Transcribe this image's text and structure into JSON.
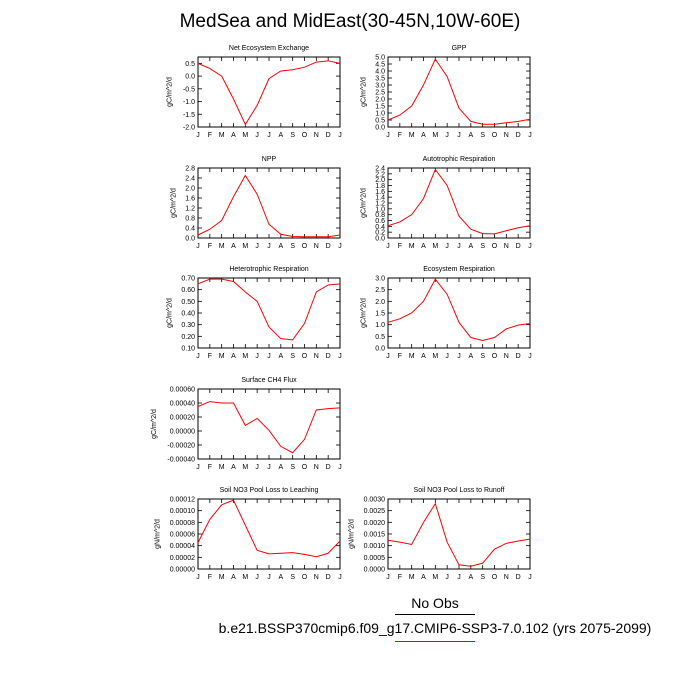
{
  "title": "MedSea and MidEast(30-45N,10W-60E)",
  "legend": {
    "label": "No Obs",
    "case": "b.e21.BSSP370cmip6.f09_g17.CMIP6-SSP3-7.0.102 (yrs 2075-2099)",
    "line_color": "#ff0000"
  },
  "colors": {
    "series": "#ff0000",
    "axis": "#000000"
  },
  "chart_data": [
    {
      "id": "nee",
      "type": "line",
      "title": "Net Ecosystem Exchange",
      "ylabel": "gC/m^2/d",
      "x": [
        "J",
        "F",
        "M",
        "A",
        "M",
        "J",
        "J",
        "A",
        "S",
        "O",
        "N",
        "D",
        "J"
      ],
      "ylim": [
        -2.0,
        0.75
      ],
      "yticks": [
        0.5,
        0.0,
        -0.5,
        -1.0,
        -1.5,
        -2.0
      ],
      "ytick_labels": [
        "0.5",
        "0.0",
        "-0.5",
        "-1.0",
        "-1.5",
        "-2.0"
      ],
      "values": [
        0.5,
        0.3,
        0.0,
        -0.9,
        -1.9,
        -1.15,
        -0.1,
        0.2,
        0.25,
        0.35,
        0.55,
        0.6,
        0.5
      ]
    },
    {
      "id": "gpp",
      "type": "line",
      "title": "GPP",
      "ylabel": "gC/m^2/d",
      "x": [
        "J",
        "F",
        "M",
        "A",
        "M",
        "J",
        "J",
        "A",
        "S",
        "O",
        "N",
        "D",
        "J"
      ],
      "ylim": [
        0,
        5.0
      ],
      "yticks": [
        0,
        0.5,
        1.0,
        1.5,
        2.0,
        2.5,
        3.0,
        3.5,
        4.0,
        4.5,
        5.0
      ],
      "ytick_labels": [
        "0.0",
        "0.5",
        "1.0",
        "1.5",
        "2.0",
        "2.5",
        "3.0",
        "3.5",
        "4.0",
        "4.5",
        "5.0"
      ],
      "values": [
        0.5,
        0.85,
        1.5,
        3.0,
        4.85,
        3.6,
        1.35,
        0.4,
        0.2,
        0.2,
        0.3,
        0.4,
        0.55
      ]
    },
    {
      "id": "npp",
      "type": "line",
      "title": "NPP",
      "ylabel": "gC/m^2/d",
      "x": [
        "J",
        "F",
        "M",
        "A",
        "M",
        "J",
        "J",
        "A",
        "S",
        "O",
        "N",
        "D",
        "J"
      ],
      "ylim": [
        0,
        2.8
      ],
      "yticks": [
        0,
        0.4,
        0.8,
        1.2,
        1.6,
        2.0,
        2.4,
        2.8
      ],
      "ytick_labels": [
        "0.0",
        "0.4",
        "0.8",
        "1.2",
        "1.6",
        "2.0",
        "2.4",
        "2.8"
      ],
      "values": [
        0.12,
        0.35,
        0.7,
        1.65,
        2.5,
        1.75,
        0.55,
        0.15,
        0.06,
        0.05,
        0.05,
        0.05,
        0.12
      ]
    },
    {
      "id": "ar",
      "type": "line",
      "title": "Autotrophic Respiration",
      "ylabel": "gC/m^2/d",
      "x": [
        "J",
        "F",
        "M",
        "A",
        "M",
        "J",
        "J",
        "A",
        "S",
        "O",
        "N",
        "D",
        "J"
      ],
      "ylim": [
        0,
        2.4
      ],
      "yticks": [
        0,
        0.2,
        0.4,
        0.6,
        0.8,
        1.0,
        1.2,
        1.4,
        1.6,
        1.8,
        2.0,
        2.2,
        2.4
      ],
      "ytick_labels": [
        "0.0",
        "0.2",
        "0.4",
        "0.6",
        "0.8",
        "1.0",
        "1.2",
        "1.4",
        "1.6",
        "1.8",
        "2.0",
        "2.2",
        "2.4"
      ],
      "values": [
        0.42,
        0.55,
        0.8,
        1.35,
        2.35,
        1.8,
        0.75,
        0.3,
        0.15,
        0.14,
        0.25,
        0.35,
        0.42
      ]
    },
    {
      "id": "hr",
      "type": "line",
      "title": "Heterotrophic Respiration",
      "ylabel": "gC/m^2/d",
      "x": [
        "J",
        "F",
        "M",
        "A",
        "M",
        "J",
        "J",
        "A",
        "S",
        "O",
        "N",
        "D",
        "J"
      ],
      "ylim": [
        0.1,
        0.7
      ],
      "yticks": [
        0.1,
        0.2,
        0.3,
        0.4,
        0.5,
        0.6,
        0.7
      ],
      "ytick_labels": [
        "0.10",
        "0.20",
        "0.30",
        "0.40",
        "0.50",
        "0.60",
        "0.70"
      ],
      "values": [
        0.65,
        0.69,
        0.69,
        0.67,
        0.58,
        0.5,
        0.28,
        0.18,
        0.17,
        0.31,
        0.58,
        0.64,
        0.65
      ]
    },
    {
      "id": "er",
      "type": "line",
      "title": "Ecosystem Respiration",
      "ylabel": "gC/m^2/d",
      "x": [
        "J",
        "F",
        "M",
        "A",
        "M",
        "J",
        "J",
        "A",
        "S",
        "O",
        "N",
        "D",
        "J"
      ],
      "ylim": [
        0,
        3.0
      ],
      "yticks": [
        0,
        0.5,
        1.0,
        1.5,
        2.0,
        2.5,
        3.0
      ],
      "ytick_labels": [
        "0.0",
        "0.5",
        "1.0",
        "1.5",
        "2.0",
        "2.5",
        "3.0"
      ],
      "values": [
        1.1,
        1.25,
        1.5,
        2.0,
        2.95,
        2.3,
        1.1,
        0.45,
        0.32,
        0.45,
        0.82,
        0.98,
        1.05
      ]
    },
    {
      "id": "ch4",
      "type": "line",
      "title": "Surface CH4 Flux",
      "ylabel": "gC/m^2/d",
      "x": [
        "J",
        "F",
        "M",
        "A",
        "M",
        "J",
        "J",
        "A",
        "S",
        "O",
        "N",
        "D",
        "J"
      ],
      "ylim": [
        -0.0004,
        0.0006
      ],
      "yticks": [
        -0.0004,
        -0.0002,
        0.0,
        0.0002,
        0.0004,
        0.0006
      ],
      "ytick_labels": [
        "-0.00040",
        "-0.00020",
        "0.00000",
        "0.00020",
        "0.00040",
        "0.00060"
      ],
      "values": [
        0.00035,
        0.00042,
        0.0004,
        0.0004,
        8e-05,
        0.00018,
        1e-05,
        -0.00022,
        -0.00031,
        -0.00012,
        0.0003,
        0.00032,
        0.00033
      ]
    },
    {
      "id": "no3leach",
      "type": "line",
      "title": "Soil NO3 Pool Loss to Leaching",
      "ylabel": "gN/m^2/d",
      "x": [
        "J",
        "F",
        "M",
        "A",
        "M",
        "J",
        "J",
        "A",
        "S",
        "O",
        "N",
        "D",
        "J"
      ],
      "ylim": [
        0,
        0.00012
      ],
      "yticks": [
        0,
        2e-05,
        4e-05,
        6e-05,
        8e-05,
        0.0001,
        0.00012
      ],
      "ytick_labels": [
        "0.00000",
        "0.00002",
        "0.00004",
        "0.00006",
        "0.00008",
        "0.00010",
        "0.00012"
      ],
      "values": [
        4.5e-05,
        8.5e-05,
        0.00011,
        0.000118,
        7.5e-05,
        3.2e-05,
        2.6e-05,
        2.7e-05,
        2.8e-05,
        2.5e-05,
        2.1e-05,
        2.7e-05,
        4.8e-05
      ]
    },
    {
      "id": "no3runoff",
      "type": "line",
      "title": "Soil NO3 Pool Loss to Runoff",
      "ylabel": "gN/m^2/d",
      "x": [
        "J",
        "F",
        "M",
        "A",
        "M",
        "J",
        "J",
        "A",
        "S",
        "O",
        "N",
        "D",
        "J"
      ],
      "ylim": [
        0,
        0.003
      ],
      "yticks": [
        0,
        0.0005,
        0.001,
        0.0015,
        0.002,
        0.0025,
        0.003
      ],
      "ytick_labels": [
        "0.0000",
        "0.0005",
        "0.0010",
        "0.0015",
        "0.0020",
        "0.0025",
        "0.0030"
      ],
      "values": [
        0.00123,
        0.00115,
        0.00105,
        0.002,
        0.0028,
        0.00115,
        0.00018,
        0.00012,
        0.00025,
        0.00085,
        0.0011,
        0.0012,
        0.00128
      ]
    }
  ]
}
